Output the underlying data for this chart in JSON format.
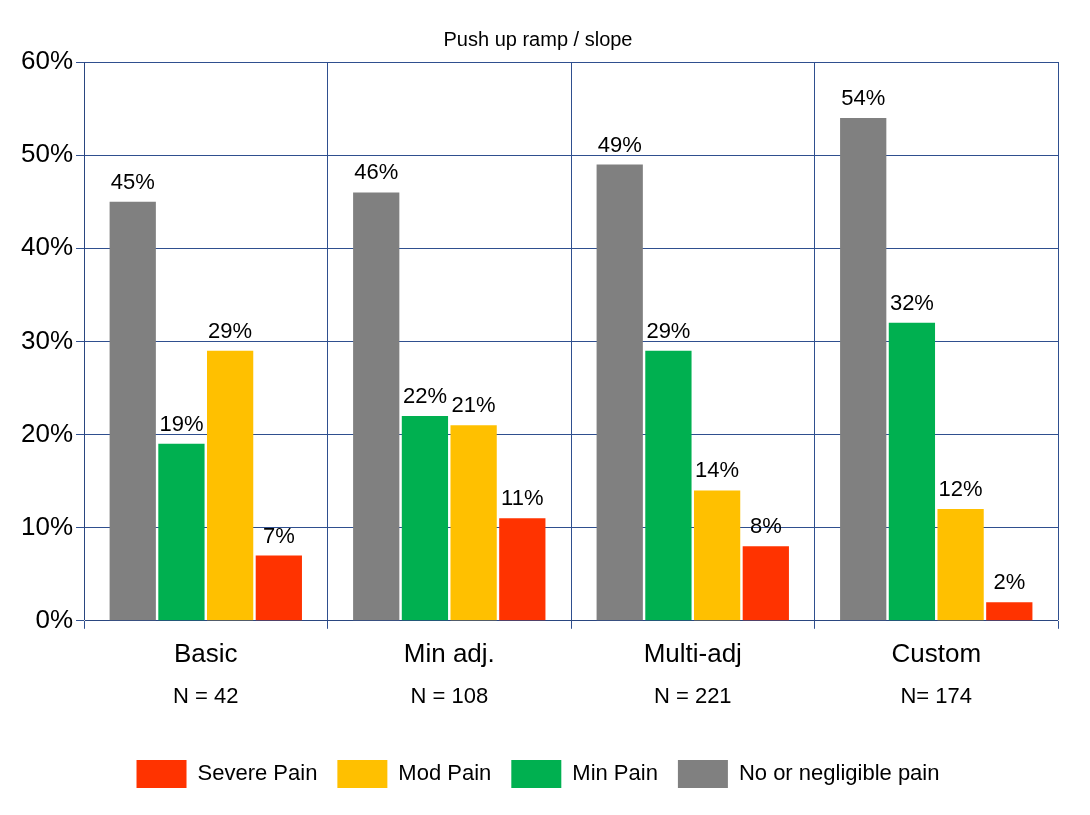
{
  "chart_data": {
    "type": "bar",
    "title": "Push up ramp / slope",
    "categories": [
      "Basic",
      "Min adj.",
      "Multi-adj",
      "Custom"
    ],
    "series": [
      {
        "name": "No or negligible pain",
        "color": "#808080",
        "values": [
          45,
          46,
          49,
          54
        ],
        "value_labels": [
          "45%",
          "46%",
          "49%",
          "54%"
        ]
      },
      {
        "name": "Min Pain",
        "color": "#00b050",
        "values": [
          19,
          22,
          29,
          32
        ],
        "value_labels": [
          "19%",
          "22%",
          "29%",
          "32%"
        ]
      },
      {
        "name": "Mod Pain",
        "color": "#ffc000",
        "values": [
          29,
          21,
          14,
          12
        ],
        "value_labels": [
          "29%",
          "21%",
          "14%",
          "12%"
        ]
      },
      {
        "name": "Severe Pain",
        "color": "#ff3300",
        "values": [
          7,
          11,
          8,
          2
        ],
        "value_labels": [
          "7%",
          "11%",
          "8%",
          "2%"
        ]
      }
    ],
    "ylim": [
      0,
      60
    ],
    "yticks": [
      {
        "value": 0,
        "label": "0%"
      },
      {
        "value": 10,
        "label": "10%"
      },
      {
        "value": 20,
        "label": "20%"
      },
      {
        "value": 30,
        "label": "30%"
      },
      {
        "value": 40,
        "label": "40%"
      },
      {
        "value": 50,
        "label": "50%"
      },
      {
        "value": 60,
        "label": "60%"
      }
    ],
    "grid": true,
    "legend": "bottom",
    "annotations": [
      "N = 42",
      "N = 108",
      "N = 221",
      "N= 174"
    ]
  }
}
